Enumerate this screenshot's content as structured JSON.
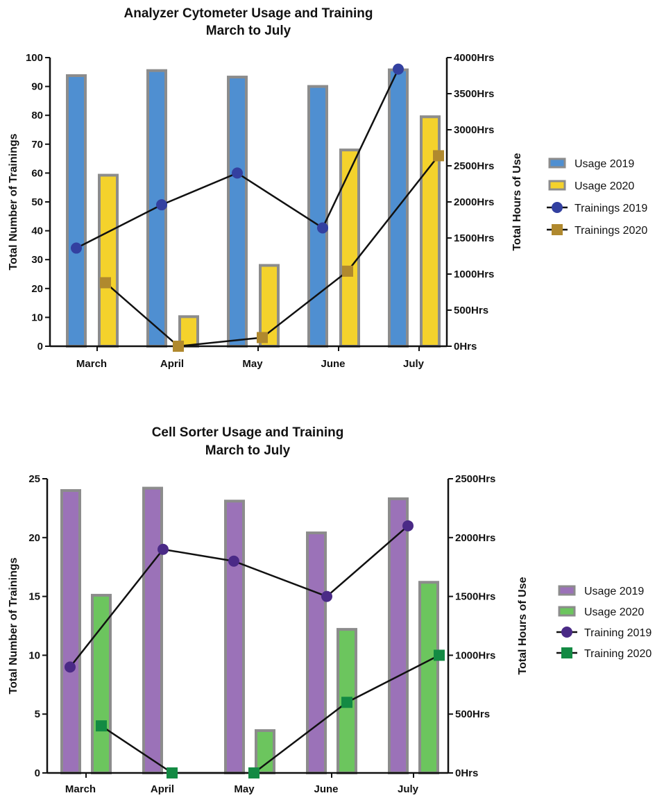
{
  "chart_data": [
    {
      "type": "bar",
      "title": "Analyzer Cytometer Usage and Training",
      "subtitle": "March to July",
      "categories": [
        "March",
        "April",
        "May",
        "June",
        "July"
      ],
      "ylabel_left": "Total Number of Trainings",
      "ylabel_right": "Total Hours of Use",
      "ylim_left": [
        0,
        100
      ],
      "ylim_right": [
        0,
        4000
      ],
      "yticks_left": [
        "0",
        "10",
        "20",
        "30",
        "40",
        "50",
        "60",
        "70",
        "80",
        "90",
        "100"
      ],
      "yticks_right": [
        "0Hrs",
        "500Hrs",
        "1000Hrs",
        "1500Hrs",
        "2000Hrs",
        "2500Hrs",
        "3000Hrs",
        "3500Hrs",
        "4000Hrs"
      ],
      "legend_position": "right",
      "series": [
        {
          "name": "Usage 2019",
          "kind": "bar",
          "axis": "right",
          "color": "#4f8fd1",
          "values": [
            3750,
            3820,
            3730,
            3600,
            3830
          ]
        },
        {
          "name": "Usage 2020",
          "kind": "bar",
          "axis": "right",
          "color": "#f4d22c",
          "values": [
            2370,
            410,
            1120,
            2720,
            3180
          ]
        },
        {
          "name": "Trainings 2019",
          "kind": "line",
          "marker": "circle",
          "axis": "left",
          "color": "#3340a0",
          "values": [
            34,
            49,
            60,
            41,
            96
          ]
        },
        {
          "name": "Trainings 2020",
          "kind": "line",
          "marker": "square",
          "axis": "left",
          "color": "#b0892e",
          "values": [
            22,
            0,
            3,
            26,
            66
          ]
        }
      ]
    },
    {
      "type": "bar",
      "title": "Cell Sorter Usage and Training",
      "subtitle": "March to July",
      "categories": [
        "March",
        "April",
        "May",
        "June",
        "July"
      ],
      "ylabel_left": "Total Number of Trainings",
      "ylabel_right": "Total Hours of Use",
      "ylim_left": [
        0,
        25
      ],
      "ylim_right": [
        0,
        2500
      ],
      "yticks_left": [
        "0",
        "5",
        "10",
        "15",
        "20",
        "25"
      ],
      "yticks_right": [
        "0Hrs",
        "500Hrs",
        "1000Hrs",
        "1500Hrs",
        "2000Hrs",
        "2500Hrs"
      ],
      "legend_position": "right",
      "series": [
        {
          "name": "Usage 2019",
          "kind": "bar",
          "axis": "right",
          "color": "#9b72b8",
          "values": [
            2400,
            2420,
            2310,
            2040,
            2330
          ]
        },
        {
          "name": "Usage 2020",
          "kind": "bar",
          "axis": "right",
          "color": "#6cc55e",
          "values": [
            1510,
            0,
            360,
            1220,
            1620
          ]
        },
        {
          "name": "Training 2019",
          "kind": "line",
          "marker": "circle",
          "axis": "left",
          "color": "#4a2a86",
          "values": [
            9,
            19,
            18,
            15,
            21
          ]
        },
        {
          "name": "Training 2020",
          "kind": "line",
          "marker": "square",
          "axis": "left",
          "color": "#138a43",
          "values": [
            4,
            0,
            0,
            6,
            10
          ]
        }
      ]
    }
  ]
}
